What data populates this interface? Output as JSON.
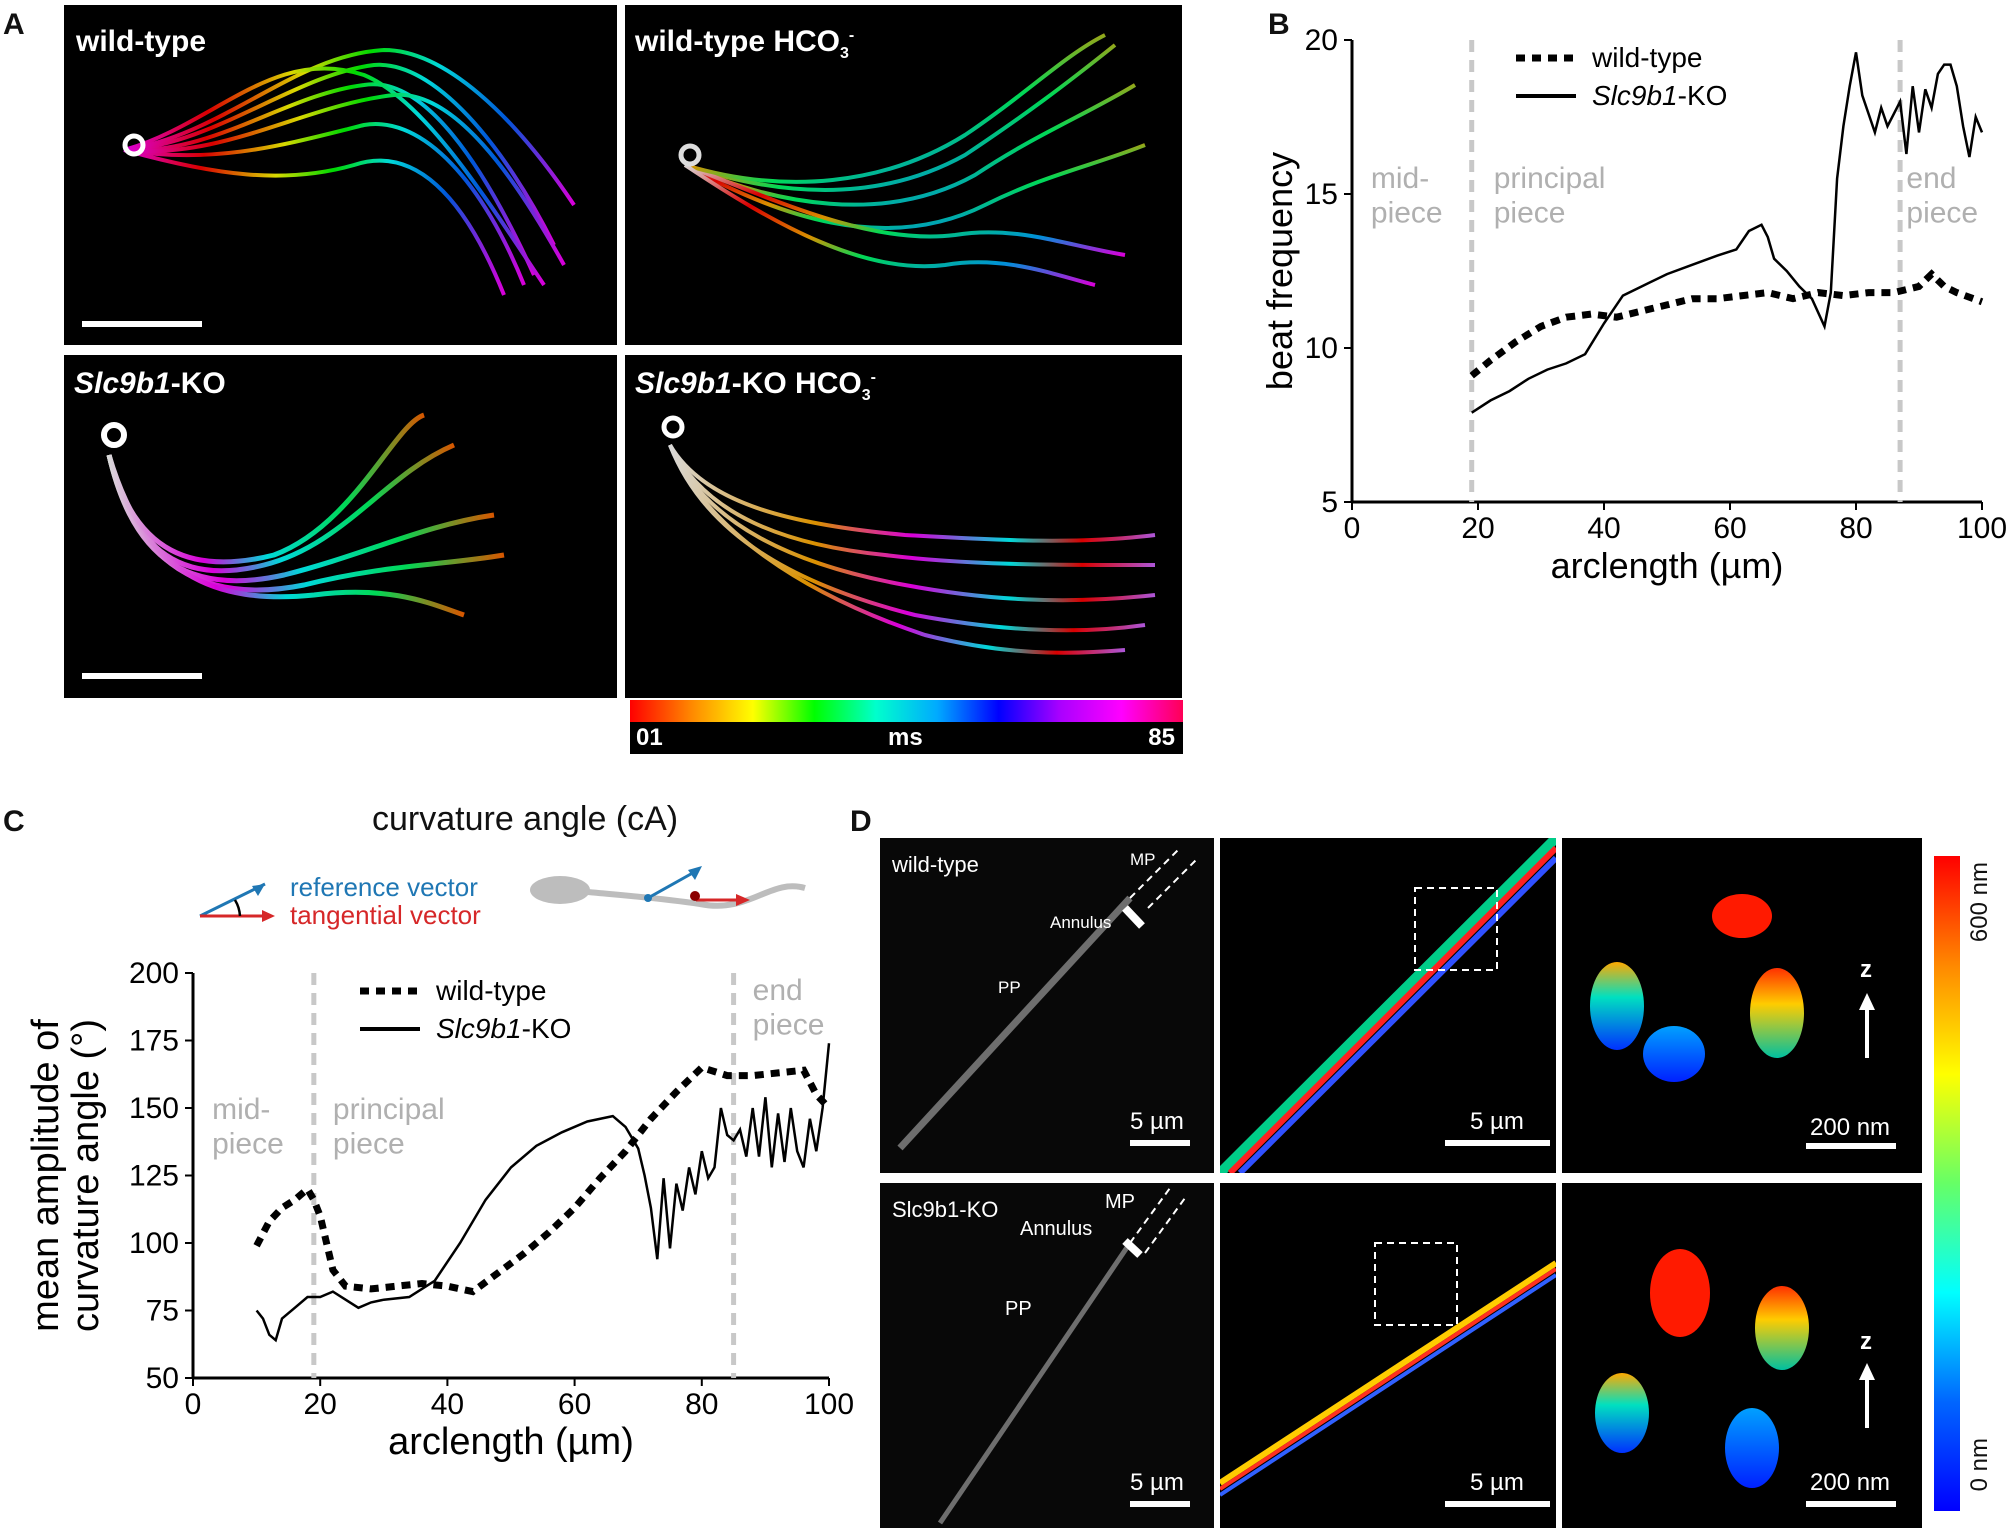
{
  "panel_A": {
    "letter": "A",
    "tiles": [
      {
        "label": "wild-type",
        "italic": "",
        "suffix": "",
        "hco3": false
      },
      {
        "label": "wild-type  HCO",
        "italic": "",
        "suffix": "",
        "hco3": true,
        "sub": "3",
        "sup": "-"
      },
      {
        "label": "",
        "italic": "Slc9b1",
        "suffix": "-KO",
        "hco3": false
      },
      {
        "label": "",
        "italic": "Slc9b1",
        "suffix": "-KO  HCO",
        "hco3": true,
        "sub": "3",
        "sup": "-"
      }
    ],
    "colorbar": {
      "min": "01",
      "unit": "ms",
      "max": "85"
    }
  },
  "panel_B": {
    "letter": "B"
  },
  "panel_C": {
    "letter": "C",
    "schematic": {
      "title": "curvature angle (cA)",
      "reference": "reference vector",
      "tangential": "tangential vector",
      "reference_color": "#1f77b4",
      "tangential_color": "#d62728"
    }
  },
  "panel_D": {
    "letter": "D",
    "rows": [
      {
        "name": "wild-type",
        "mp": "MP",
        "annulus": "Annulus",
        "pp": "PP",
        "scale1": "5 µm",
        "scale2": "5 µm",
        "scale3": "200 nm",
        "z": "z"
      },
      {
        "name": "Slc9b1-KO",
        "mp": "MP",
        "annulus": "Annulus",
        "pp": "PP",
        "scale1": "5 µm",
        "scale2": "5 µm",
        "scale3": "200 nm",
        "z": "z"
      }
    ],
    "colorbar": {
      "top": "600 nm",
      "bottom": "0 nm"
    }
  },
  "chart_data": [
    {
      "id": "B",
      "type": "line",
      "title": "",
      "xlabel": "arclength (µm)",
      "ylabel": "beat frequency",
      "xlim": [
        0,
        100
      ],
      "ylim": [
        5,
        20
      ],
      "xticks": [
        0,
        20,
        40,
        60,
        80,
        100
      ],
      "yticks": [
        5,
        10,
        15,
        20
      ],
      "region_lines": [
        19,
        87
      ],
      "region_labels": [
        {
          "lines": [
            "mid-",
            "piece"
          ],
          "x": 3,
          "y": 15.2
        },
        {
          "lines": [
            "principal",
            "piece"
          ],
          "x": 22.5,
          "y": 15.2
        },
        {
          "lines": [
            "end",
            "piece"
          ],
          "x": 88,
          "y": 15.2
        }
      ],
      "legend": [
        {
          "name": "wild-type",
          "style": "dotted"
        },
        {
          "name_italic": "Slc9b1",
          "name_rest": "-KO",
          "style": "solid"
        }
      ],
      "series": [
        {
          "name": "wild-type",
          "style": "dotted",
          "x": [
            19,
            22,
            26,
            30,
            34,
            38,
            42,
            46,
            50,
            54,
            58,
            62,
            66,
            70,
            74,
            78,
            82,
            86,
            90,
            92,
            94,
            96,
            100
          ],
          "y": [
            9.1,
            9.6,
            10.2,
            10.7,
            11.0,
            11.1,
            11.0,
            11.2,
            11.4,
            11.6,
            11.6,
            11.7,
            11.8,
            11.6,
            11.8,
            11.7,
            11.8,
            11.8,
            12.0,
            12.4,
            12.0,
            11.8,
            11.5
          ]
        },
        {
          "name": "Slc9b1-KO",
          "style": "solid",
          "x": [
            19,
            22,
            25,
            28,
            31,
            34,
            37,
            40,
            43,
            46,
            50,
            54,
            58,
            61,
            63,
            65,
            66,
            67,
            69,
            71,
            73,
            75,
            76,
            77,
            78,
            79,
            80,
            81,
            82,
            83,
            84,
            85,
            86,
            87,
            88,
            89,
            90,
            91,
            92,
            93,
            94,
            95,
            96,
            97,
            98,
            99,
            100
          ],
          "y": [
            7.9,
            8.3,
            8.6,
            9.0,
            9.3,
            9.5,
            9.8,
            10.8,
            11.7,
            12.0,
            12.4,
            12.7,
            13.0,
            13.2,
            13.8,
            14.0,
            13.6,
            12.9,
            12.5,
            12.0,
            11.6,
            10.7,
            11.8,
            15.5,
            17.2,
            18.5,
            19.6,
            18.2,
            17.6,
            17.0,
            17.8,
            17.2,
            17.6,
            18.0,
            16.3,
            18.5,
            17.0,
            18.4,
            17.8,
            18.9,
            19.2,
            19.2,
            18.5,
            17.2,
            16.2,
            17.5,
            17.0
          ]
        }
      ]
    },
    {
      "id": "C",
      "type": "line",
      "title": "",
      "xlabel": "arclength (µm)",
      "ylabel_lines": [
        "mean amplitude of",
        "curvature angle (°)"
      ],
      "xlim": [
        0,
        100
      ],
      "ylim": [
        50,
        200
      ],
      "xticks": [
        0,
        20,
        40,
        60,
        80,
        100
      ],
      "yticks": [
        50,
        75,
        100,
        125,
        150,
        175,
        200
      ],
      "region_lines": [
        19,
        85
      ],
      "region_labels": [
        {
          "lines": [
            "mid-",
            "piece"
          ],
          "x": 3,
          "y": 146
        },
        {
          "lines": [
            "principal",
            "piece"
          ],
          "x": 22,
          "y": 146
        },
        {
          "lines": [
            "end",
            "piece"
          ],
          "x": 88,
          "y": 190
        }
      ],
      "legend": [
        {
          "name": "wild-type",
          "style": "dotted"
        },
        {
          "name_italic": "Slc9b1",
          "name_rest": "-KO",
          "style": "solid"
        }
      ],
      "series": [
        {
          "name": "wild-type",
          "style": "dotted",
          "x": [
            10,
            12,
            14,
            16,
            18,
            19,
            20,
            22,
            24,
            28,
            32,
            36,
            40,
            44,
            48,
            52,
            56,
            60,
            64,
            68,
            72,
            76,
            80,
            84,
            88,
            92,
            96,
            98,
            100
          ],
          "y": [
            99,
            108,
            113,
            116,
            120,
            116,
            110,
            90,
            84,
            83,
            84,
            85,
            84,
            82,
            89,
            96,
            104,
            113,
            124,
            134,
            146,
            156,
            165,
            162,
            162,
            163,
            164,
            155,
            150
          ]
        },
        {
          "name": "Slc9b1-KO",
          "style": "solid",
          "x": [
            10,
            11,
            12,
            13,
            14,
            16,
            18,
            20,
            22,
            24,
            26,
            28,
            30,
            34,
            38,
            42,
            46,
            50,
            54,
            58,
            62,
            66,
            68,
            70,
            71,
            72,
            73,
            74,
            75,
            76,
            77,
            78,
            79,
            80,
            81,
            82,
            83,
            84,
            85,
            86,
            87,
            88,
            89,
            90,
            91,
            92,
            93,
            94,
            95,
            96,
            97,
            98,
            99,
            100
          ],
          "y": [
            75,
            72,
            66,
            64,
            72,
            76,
            80,
            80,
            82,
            79,
            76,
            78,
            79,
            80,
            86,
            100,
            116,
            128,
            136,
            141,
            145,
            147,
            143,
            135,
            125,
            113,
            94,
            124,
            98,
            122,
            112,
            128,
            118,
            134,
            124,
            128,
            150,
            140,
            138,
            142,
            132,
            150,
            132,
            154,
            128,
            148,
            130,
            150,
            134,
            128,
            146,
            134,
            150,
            174
          ]
        }
      ]
    }
  ]
}
